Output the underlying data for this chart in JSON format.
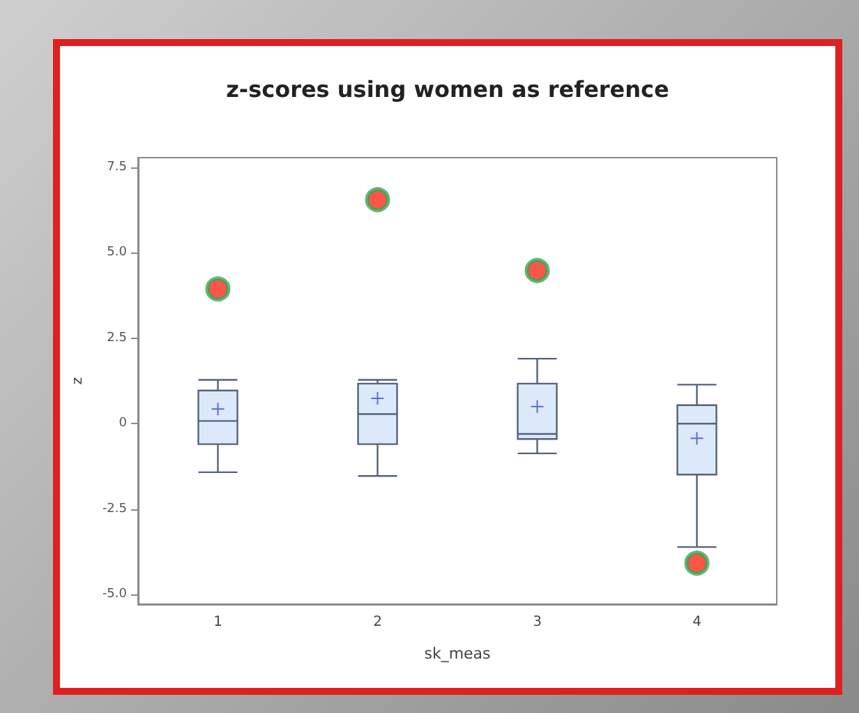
{
  "chart_data": {
    "type": "box",
    "title": "z-scores using women as reference",
    "xlabel": "sk_meas",
    "ylabel": "z",
    "categories": [
      "1",
      "2",
      "3",
      "4"
    ],
    "color": "#dbe9fa",
    "boxes": [
      {
        "low": -1.42,
        "q1": -0.6,
        "median": 0.08,
        "q3": 0.97,
        "high": 1.28,
        "mean": 0.43,
        "outliers": [
          3.94
        ]
      },
      {
        "low": -1.53,
        "q1": -0.6,
        "median": 0.28,
        "q3": 1.17,
        "high": 1.28,
        "mean": 0.74,
        "outliers": [
          6.55
        ]
      },
      {
        "low": -0.87,
        "q1": -0.45,
        "median": -0.3,
        "q3": 1.17,
        "high": 1.9,
        "mean": 0.5,
        "outliers": [
          4.48
        ]
      },
      {
        "low": -3.61,
        "q1": -1.49,
        "median": 0,
        "q3": 0.54,
        "high": 1.14,
        "mean": -0.43,
        "outliers": [
          -4.08
        ]
      }
    ],
    "ylim": [
      -5.28,
      7.78
    ],
    "yticks": [
      {
        "value": -5,
        "label": "-5.0"
      },
      {
        "value": -2.5,
        "label": "-2.5"
      },
      0,
      {
        "value": 2.5,
        "label": "2.5"
      },
      {
        "value": 5,
        "label": "5.0"
      },
      {
        "value": 7.5,
        "label": "7.5"
      }
    ],
    "grid": false
  }
}
